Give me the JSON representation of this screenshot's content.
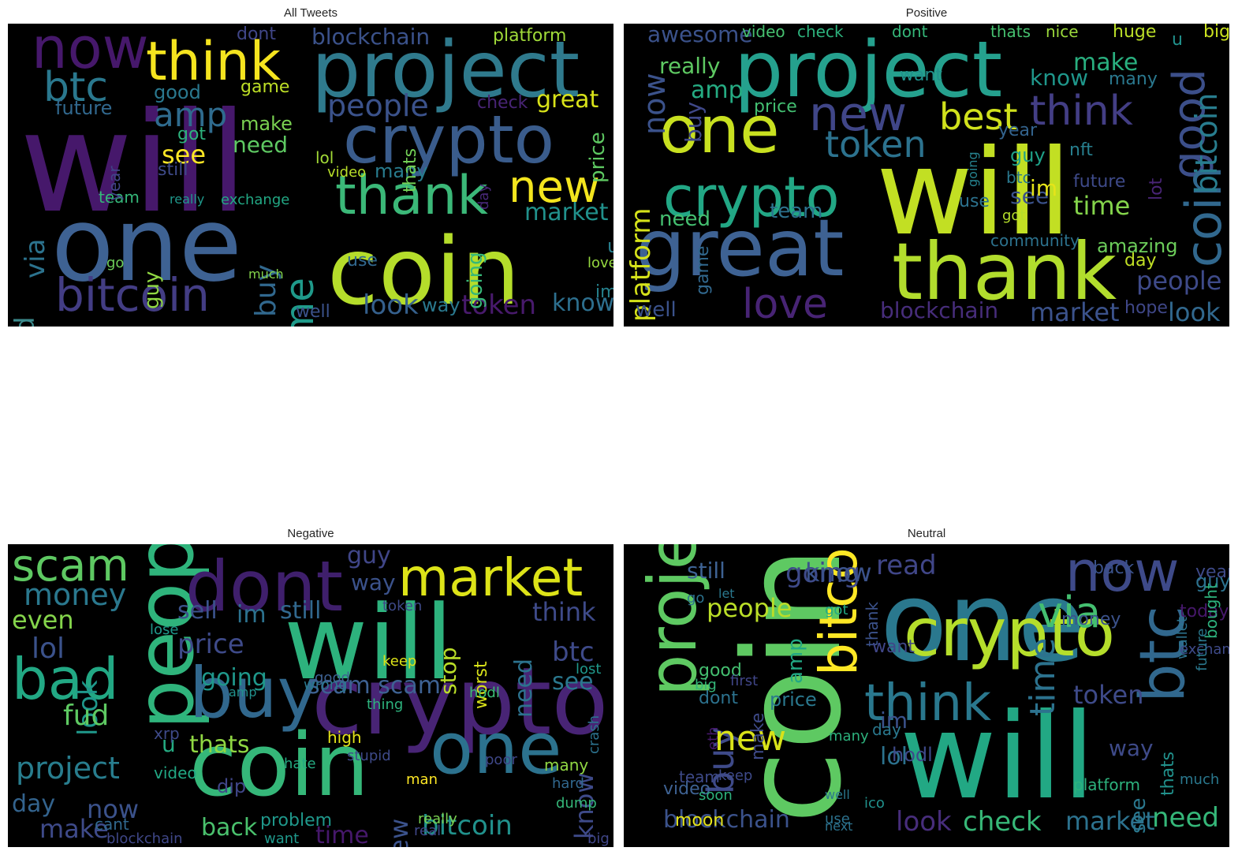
{
  "panels": [
    {
      "title": "All Tweets",
      "words": [
        {
          "t": "will",
          "c": "#46186b"
        },
        {
          "t": "one",
          "c": "#3e6293"
        },
        {
          "t": "coin",
          "c": "#b5dd2b"
        },
        {
          "t": "project",
          "c": "#2f7a8d"
        },
        {
          "t": "crypto",
          "c": "#3a5c8c"
        },
        {
          "t": "think",
          "c": "#f5e41f"
        },
        {
          "t": "now",
          "c": "#46186b"
        },
        {
          "t": "bitcoin",
          "c": "#433d84"
        },
        {
          "t": "thank",
          "c": "#3bb878"
        },
        {
          "t": "new",
          "c": "#f3e51e"
        },
        {
          "t": "btc",
          "c": "#2a788e"
        },
        {
          "t": "time",
          "c": "#1f9a8a"
        },
        {
          "t": "amp",
          "c": "#2f6b8e"
        },
        {
          "t": "people",
          "c": "#3b528b"
        },
        {
          "t": "blockchain",
          "c": "#3b528b"
        },
        {
          "t": "token",
          "c": "#481a6c"
        },
        {
          "t": "look",
          "c": "#35608d"
        },
        {
          "t": "know",
          "c": "#2d6f8e"
        },
        {
          "t": "market",
          "c": "#21918c"
        },
        {
          "t": "great",
          "c": "#d8e219"
        },
        {
          "t": "see",
          "c": "#fde725"
        },
        {
          "t": "need",
          "c": "#5ec962"
        },
        {
          "t": "read",
          "c": "#3b8a8c"
        },
        {
          "t": "via",
          "c": "#2c738e"
        },
        {
          "t": "buy",
          "c": "#31688e"
        },
        {
          "t": "platform",
          "c": "#a0da39"
        },
        {
          "t": "good",
          "c": "#2a788e"
        },
        {
          "t": "future",
          "c": "#31688e"
        },
        {
          "t": "check",
          "c": "#482475"
        },
        {
          "t": "price",
          "c": "#5ec962"
        },
        {
          "t": "make",
          "c": "#7ad151"
        },
        {
          "t": "still",
          "c": "#3e4a89"
        },
        {
          "t": "game",
          "c": "#bddf26"
        },
        {
          "t": "got",
          "c": "#2db27d"
        },
        {
          "t": "dont",
          "c": "#404688"
        },
        {
          "t": "guy",
          "c": "#90d743"
        },
        {
          "t": "many",
          "c": "#287c8e"
        },
        {
          "t": "team",
          "c": "#35b779"
        },
        {
          "t": "year",
          "c": "#414487"
        },
        {
          "t": "way",
          "c": "#2a788e"
        },
        {
          "t": "lol",
          "c": "#a2da37"
        },
        {
          "t": "im",
          "c": "#26828e"
        },
        {
          "t": "well",
          "c": "#3b528b"
        },
        {
          "t": "use",
          "c": "#31688e"
        },
        {
          "t": "love",
          "c": "#95d840"
        },
        {
          "t": "exchange",
          "c": "#22a884"
        },
        {
          "t": "going",
          "c": "#37b878"
        },
        {
          "t": "really",
          "c": "#1f988b"
        },
        {
          "t": "thats",
          "c": "#73d056"
        },
        {
          "t": "video",
          "c": "#b8de29"
        },
        {
          "t": "u",
          "c": "#277f8e"
        },
        {
          "t": "day",
          "c": "#482878"
        },
        {
          "t": "much",
          "c": "#84d44b"
        },
        {
          "t": "go",
          "c": "#6ece58"
        }
      ]
    },
    {
      "title": "Positive",
      "words": [
        {
          "t": "will",
          "c": "#c2df23"
        },
        {
          "t": "project",
          "c": "#25a18e"
        },
        {
          "t": "thank",
          "c": "#b2dd2d"
        },
        {
          "t": "great",
          "c": "#3e6293"
        },
        {
          "t": "one",
          "c": "#c8e020"
        },
        {
          "t": "crypto",
          "c": "#22a785"
        },
        {
          "t": "new",
          "c": "#404688"
        },
        {
          "t": "good",
          "c": "#3c4f8a"
        },
        {
          "t": "coin",
          "c": "#31688e"
        },
        {
          "t": "love",
          "c": "#482475"
        },
        {
          "t": "think",
          "c": "#433e85"
        },
        {
          "t": "best",
          "c": "#d0e11c"
        },
        {
          "t": "token",
          "c": "#2c728e"
        },
        {
          "t": "bitcoin",
          "c": "#287d8e"
        },
        {
          "t": "platform",
          "c": "#d5e21a"
        },
        {
          "t": "now",
          "c": "#3b528b"
        },
        {
          "t": "amp",
          "c": "#25ab82"
        },
        {
          "t": "buy",
          "c": "#3f4889"
        },
        {
          "t": "really",
          "c": "#5ec962"
        },
        {
          "t": "blockchain",
          "c": "#472d7b"
        },
        {
          "t": "market",
          "c": "#3b528b"
        },
        {
          "t": "look",
          "c": "#31688e"
        },
        {
          "t": "people",
          "c": "#3e4a89"
        },
        {
          "t": "time",
          "c": "#84d44b"
        },
        {
          "t": "team",
          "c": "#2c728e"
        },
        {
          "t": "need",
          "c": "#44bf70"
        },
        {
          "t": "know",
          "c": "#1f978b"
        },
        {
          "t": "make",
          "c": "#29af7f"
        },
        {
          "t": "many",
          "c": "#2a788e"
        },
        {
          "t": "see",
          "c": "#3b528b"
        },
        {
          "t": "awesome",
          "c": "#3b528b"
        },
        {
          "t": "video",
          "c": "#46c06f"
        },
        {
          "t": "check",
          "c": "#2db27d"
        },
        {
          "t": "dont",
          "c": "#35b779"
        },
        {
          "t": "thats",
          "c": "#46c06f"
        },
        {
          "t": "nice",
          "c": "#9bd93c"
        },
        {
          "t": "huge",
          "c": "#bade28"
        },
        {
          "t": "big",
          "c": "#cae11f"
        },
        {
          "t": "price",
          "c": "#43bf71"
        },
        {
          "t": "guy",
          "c": "#1fa188"
        },
        {
          "t": "btc",
          "c": "#2a788e"
        },
        {
          "t": "im",
          "c": "#e5e419"
        },
        {
          "t": "use",
          "c": "#2c728e"
        },
        {
          "t": "well",
          "c": "#3b528b"
        },
        {
          "t": "game",
          "c": "#31688e"
        },
        {
          "t": "day",
          "c": "#c0df25"
        },
        {
          "t": "hope",
          "c": "#3f4788"
        },
        {
          "t": "amazing",
          "c": "#6ccd5a"
        },
        {
          "t": "community",
          "c": "#2c728e"
        },
        {
          "t": "future",
          "c": "#3e4a89"
        },
        {
          "t": "lot",
          "c": "#482475"
        },
        {
          "t": "nft",
          "c": "#277f8e"
        },
        {
          "t": "want",
          "c": "#21918c"
        },
        {
          "t": "got",
          "c": "#b5de2b"
        },
        {
          "t": "going",
          "c": "#26828e"
        },
        {
          "t": "u",
          "c": "#21918c"
        },
        {
          "t": "year",
          "c": "#33638d"
        }
      ]
    },
    {
      "title": "Negative",
      "words": [
        {
          "t": "will",
          "c": "#2db27d"
        },
        {
          "t": "crypto",
          "c": "#482475"
        },
        {
          "t": "people",
          "c": "#2fb47c"
        },
        {
          "t": "coin",
          "c": "#35b779"
        },
        {
          "t": "buy",
          "c": "#31688e"
        },
        {
          "t": "dont",
          "c": "#3f1f6c"
        },
        {
          "t": "market",
          "c": "#dde318"
        },
        {
          "t": "one",
          "c": "#2c728e"
        },
        {
          "t": "bad",
          "c": "#22a884"
        },
        {
          "t": "scam",
          "c": "#5ec962"
        },
        {
          "t": "money",
          "c": "#2a788e"
        },
        {
          "t": "even",
          "c": "#84d44b"
        },
        {
          "t": "lol",
          "c": "#3b528b"
        },
        {
          "t": "project",
          "c": "#287d8e"
        },
        {
          "t": "bitcoin",
          "c": "#21918c"
        },
        {
          "t": "price",
          "c": "#3e4a89"
        },
        {
          "t": "going",
          "c": "#1f988b"
        },
        {
          "t": "sell",
          "c": "#3b528b"
        },
        {
          "t": "still",
          "c": "#31688e"
        },
        {
          "t": "look",
          "c": "#1f988b"
        },
        {
          "t": "think",
          "c": "#3e4a89"
        },
        {
          "t": "btc",
          "c": "#3e4a89"
        },
        {
          "t": "see",
          "c": "#2a788e"
        },
        {
          "t": "guy",
          "c": "#404688"
        },
        {
          "t": "way",
          "c": "#3b528b"
        },
        {
          "t": "im",
          "c": "#2c728e"
        },
        {
          "t": "stop",
          "c": "#bade28"
        },
        {
          "t": "need",
          "c": "#2c728e"
        },
        {
          "t": "scam scam",
          "c": "#3e6293"
        },
        {
          "t": "fud",
          "c": "#5ec962"
        },
        {
          "t": "thats",
          "c": "#90d743"
        },
        {
          "t": "back",
          "c": "#4ac16d"
        },
        {
          "t": "day",
          "c": "#33638d"
        },
        {
          "t": "now",
          "c": "#3b528b"
        },
        {
          "t": "make",
          "c": "#3e4a89"
        },
        {
          "t": "time",
          "c": "#46186b"
        },
        {
          "t": "new",
          "c": "#3b528b"
        },
        {
          "t": "know",
          "c": "#3e4a89"
        },
        {
          "t": "u",
          "c": "#25ab82"
        },
        {
          "t": "dip",
          "c": "#404688"
        },
        {
          "t": "problem",
          "c": "#1f988b"
        },
        {
          "t": "want",
          "c": "#1f988b"
        },
        {
          "t": "really",
          "c": "#7ad151"
        },
        {
          "t": "real",
          "c": "#3f4788"
        },
        {
          "t": "blockchain",
          "c": "#3f4788"
        },
        {
          "t": "cant",
          "c": "#31688e"
        },
        {
          "t": "high",
          "c": "#e5e419"
        },
        {
          "t": "stupid",
          "c": "#3e4a89"
        },
        {
          "t": "man",
          "c": "#fde725"
        },
        {
          "t": "many",
          "c": "#90d743"
        },
        {
          "t": "hard",
          "c": "#31688e"
        },
        {
          "t": "dump",
          "c": "#35b779"
        },
        {
          "t": "big",
          "c": "#404688"
        },
        {
          "t": "lost",
          "c": "#1f988b"
        },
        {
          "t": "crash",
          "c": "#2c728e"
        },
        {
          "t": "worst",
          "c": "#d8e219"
        },
        {
          "t": "hodl",
          "c": "#3bbb75"
        },
        {
          "t": "wrong",
          "c": "#2a788e"
        },
        {
          "t": "amp",
          "c": "#21918c"
        },
        {
          "t": "video",
          "c": "#22a884"
        },
        {
          "t": "hate",
          "c": "#25ab82"
        },
        {
          "t": "poor",
          "c": "#3f4788"
        },
        {
          "t": "token",
          "c": "#3e4a89"
        },
        {
          "t": "keep",
          "c": "#dde318"
        },
        {
          "t": "thing",
          "c": "#2db27d"
        },
        {
          "t": "xrp",
          "c": "#3e4a89"
        },
        {
          "t": "lose",
          "c": "#1f988b"
        },
        {
          "t": "good",
          "c": "#3e6293"
        }
      ]
    },
    {
      "title": "Neutral",
      "words": [
        {
          "t": "will",
          "c": "#22a884"
        },
        {
          "t": "coin",
          "c": "#5ec962"
        },
        {
          "t": "one",
          "c": "#2a788e"
        },
        {
          "t": "crypto",
          "c": "#b5de2b"
        },
        {
          "t": "project",
          "c": "#5ec962"
        },
        {
          "t": "bitcoin",
          "c": "#fde725"
        },
        {
          "t": "btc",
          "c": "#31688e"
        },
        {
          "t": "now",
          "c": "#3e4a89"
        },
        {
          "t": "think",
          "c": "#2a788e"
        },
        {
          "t": "via",
          "c": "#44bf70"
        },
        {
          "t": "c",
          "c": "#2a788e"
        },
        {
          "t": "time",
          "c": "#2c728e"
        },
        {
          "t": "buy",
          "c": "#3e4a89"
        },
        {
          "t": "new",
          "c": "#d8e219"
        },
        {
          "t": "people",
          "c": "#bade28"
        },
        {
          "t": "token",
          "c": "#3e4a89"
        },
        {
          "t": "market",
          "c": "#2c728e"
        },
        {
          "t": "need",
          "c": "#35b779"
        },
        {
          "t": "check",
          "c": "#37b878"
        },
        {
          "t": "look",
          "c": "#472d7b"
        },
        {
          "t": "blockchain",
          "c": "#3b528b"
        },
        {
          "t": "going",
          "c": "#3e4a89"
        },
        {
          "t": "still",
          "c": "#3e6293"
        },
        {
          "t": "read",
          "c": "#404688"
        },
        {
          "t": "know",
          "c": "#3b528b"
        },
        {
          "t": "lol",
          "c": "#2c728e"
        },
        {
          "t": "price",
          "c": "#2a788e"
        },
        {
          "t": "amp",
          "c": "#22a884"
        },
        {
          "t": "way",
          "c": "#3e4a89"
        },
        {
          "t": "see",
          "c": "#2a788e"
        },
        {
          "t": "im",
          "c": "#3b528b"
        },
        {
          "t": "make",
          "c": "#3e4a89"
        },
        {
          "t": "thats",
          "c": "#21918c"
        },
        {
          "t": "platform",
          "c": "#2db27d"
        },
        {
          "t": "money",
          "c": "#3b528b"
        },
        {
          "t": "year",
          "c": "#3e4a89"
        },
        {
          "t": "guy",
          "c": "#2c728e"
        },
        {
          "t": "today",
          "c": "#46186b"
        },
        {
          "t": "bought",
          "c": "#2db27d"
        },
        {
          "t": "wallet",
          "c": "#2c728e"
        },
        {
          "t": "exchange",
          "c": "#3e4a89"
        },
        {
          "t": "future",
          "c": "#2a788e"
        },
        {
          "t": "thank",
          "c": "#3b528b"
        },
        {
          "t": "got",
          "c": "#22a884"
        },
        {
          "t": "good",
          "c": "#44bf70"
        },
        {
          "t": "big",
          "c": "#35b779"
        },
        {
          "t": "day",
          "c": "#2a788e"
        },
        {
          "t": "dont",
          "c": "#2c728e"
        },
        {
          "t": "ico",
          "c": "#21918c"
        },
        {
          "t": "hodl",
          "c": "#3e4a89"
        },
        {
          "t": "moon",
          "c": "#e5e419"
        },
        {
          "t": "video",
          "c": "#3e6293"
        },
        {
          "t": "team",
          "c": "#3e4a89"
        },
        {
          "t": "soon",
          "c": "#2db27d"
        },
        {
          "t": "much",
          "c": "#2a788e"
        },
        {
          "t": "back",
          "c": "#3b528b"
        },
        {
          "t": "go",
          "c": "#2c728e"
        },
        {
          "t": "let",
          "c": "#2a788e"
        },
        {
          "t": "want",
          "c": "#404688"
        },
        {
          "t": "many",
          "c": "#2db27d"
        },
        {
          "t": "keep",
          "c": "#3e4a89"
        },
        {
          "t": "next",
          "c": "#2c728e"
        },
        {
          "t": "well",
          "c": "#2a788e"
        },
        {
          "t": "first",
          "c": "#404688"
        },
        {
          "t": "use",
          "c": "#2c728e"
        },
        {
          "t": "eth",
          "c": "#46186b"
        }
      ]
    }
  ]
}
